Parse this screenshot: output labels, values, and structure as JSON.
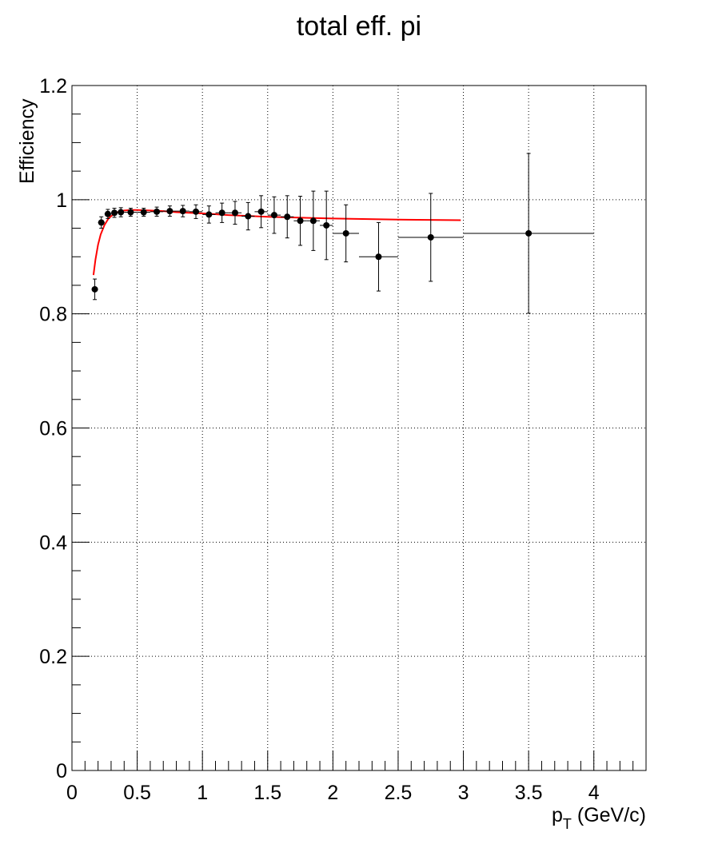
{
  "chart_data": {
    "type": "scatter",
    "title": "total eff. pi",
    "xlabel": {
      "main": "p",
      "sub": "T",
      "rest": " (GeV/c)"
    },
    "ylabel": "Efficiency",
    "xlim": [
      0,
      4.4
    ],
    "ylim": [
      0,
      1.2
    ],
    "x_ticks": [
      {
        "v": 0,
        "label": "0"
      },
      {
        "v": 0.5,
        "label": "0.5"
      },
      {
        "v": 1,
        "label": "1"
      },
      {
        "v": 1.5,
        "label": "1.5"
      },
      {
        "v": 2,
        "label": "2"
      },
      {
        "v": 2.5,
        "label": "2.5"
      },
      {
        "v": 3,
        "label": "3"
      },
      {
        "v": 3.5,
        "label": "3.5"
      },
      {
        "v": 4,
        "label": "4"
      }
    ],
    "y_ticks": [
      {
        "v": 0,
        "label": "0"
      },
      {
        "v": 0.2,
        "label": "0.2"
      },
      {
        "v": 0.4,
        "label": "0.4"
      },
      {
        "v": 0.6,
        "label": "0.6"
      },
      {
        "v": 0.8,
        "label": "0.8"
      },
      {
        "v": 1,
        "label": "1"
      },
      {
        "v": 1.2,
        "label": "1.2"
      }
    ],
    "grid": true,
    "series": [
      {
        "kind": "points-with-errors",
        "color": "#000000",
        "points": [
          {
            "x": 0.175,
            "y": 0.843,
            "xlo": 0.15,
            "xhi": 0.2,
            "eyl": 0.018,
            "eyh": 0.018
          },
          {
            "x": 0.225,
            "y": 0.96,
            "xlo": 0.2,
            "xhi": 0.25,
            "eyl": 0.01,
            "eyh": 0.01
          },
          {
            "x": 0.275,
            "y": 0.975,
            "xlo": 0.25,
            "xhi": 0.3,
            "eyl": 0.008,
            "eyh": 0.008
          },
          {
            "x": 0.325,
            "y": 0.977,
            "xlo": 0.3,
            "xhi": 0.35,
            "eyl": 0.008,
            "eyh": 0.008
          },
          {
            "x": 0.375,
            "y": 0.978,
            "xlo": 0.35,
            "xhi": 0.4,
            "eyl": 0.008,
            "eyh": 0.008
          },
          {
            "x": 0.45,
            "y": 0.978,
            "xlo": 0.4,
            "xhi": 0.5,
            "eyl": 0.007,
            "eyh": 0.007
          },
          {
            "x": 0.55,
            "y": 0.978,
            "xlo": 0.5,
            "xhi": 0.6,
            "eyl": 0.007,
            "eyh": 0.007
          },
          {
            "x": 0.65,
            "y": 0.979,
            "xlo": 0.6,
            "xhi": 0.7,
            "eyl": 0.008,
            "eyh": 0.008
          },
          {
            "x": 0.75,
            "y": 0.98,
            "xlo": 0.7,
            "xhi": 0.8,
            "eyl": 0.009,
            "eyh": 0.009
          },
          {
            "x": 0.85,
            "y": 0.98,
            "xlo": 0.8,
            "xhi": 0.9,
            "eyl": 0.01,
            "eyh": 0.01
          },
          {
            "x": 0.95,
            "y": 0.979,
            "xlo": 0.9,
            "xhi": 1.0,
            "eyl": 0.012,
            "eyh": 0.012
          },
          {
            "x": 1.05,
            "y": 0.974,
            "xlo": 1.0,
            "xhi": 1.1,
            "eyl": 0.015,
            "eyh": 0.015
          },
          {
            "x": 1.15,
            "y": 0.977,
            "xlo": 1.1,
            "xhi": 1.2,
            "eyl": 0.017,
            "eyh": 0.017
          },
          {
            "x": 1.25,
            "y": 0.977,
            "xlo": 1.2,
            "xhi": 1.3,
            "eyl": 0.02,
            "eyh": 0.02
          },
          {
            "x": 1.35,
            "y": 0.971,
            "xlo": 1.3,
            "xhi": 1.4,
            "eyl": 0.024,
            "eyh": 0.024
          },
          {
            "x": 1.45,
            "y": 0.979,
            "xlo": 1.4,
            "xhi": 1.5,
            "eyl": 0.028,
            "eyh": 0.028
          },
          {
            "x": 1.55,
            "y": 0.973,
            "xlo": 1.5,
            "xhi": 1.6,
            "eyl": 0.032,
            "eyh": 0.032
          },
          {
            "x": 1.65,
            "y": 0.97,
            "xlo": 1.6,
            "xhi": 1.7,
            "eyl": 0.037,
            "eyh": 0.037
          },
          {
            "x": 1.75,
            "y": 0.963,
            "xlo": 1.7,
            "xhi": 1.8,
            "eyl": 0.043,
            "eyh": 0.043
          },
          {
            "x": 1.85,
            "y": 0.963,
            "xlo": 1.8,
            "xhi": 1.9,
            "eyl": 0.052,
            "eyh": 0.052
          },
          {
            "x": 1.95,
            "y": 0.955,
            "xlo": 1.9,
            "xhi": 2.0,
            "eyl": 0.06,
            "eyh": 0.06
          },
          {
            "x": 2.1,
            "y": 0.941,
            "xlo": 2.0,
            "xhi": 2.2,
            "eyl": 0.05,
            "eyh": 0.05
          },
          {
            "x": 2.35,
            "y": 0.9,
            "xlo": 2.2,
            "xhi": 2.5,
            "eyl": 0.06,
            "eyh": 0.06
          },
          {
            "x": 2.75,
            "y": 0.934,
            "xlo": 2.5,
            "xhi": 3.0,
            "eyl": 0.077,
            "eyh": 0.077
          },
          {
            "x": 3.5,
            "y": 0.941,
            "xlo": 3.0,
            "xhi": 4.0,
            "eyl": 0.14,
            "eyh": 0.14
          }
        ]
      },
      {
        "kind": "fit-line",
        "color": "#ff0000",
        "x": [
          0.165,
          0.18,
          0.2,
          0.22,
          0.25,
          0.28,
          0.32,
          0.36,
          0.4,
          0.45,
          0.5,
          0.6,
          0.7,
          0.8,
          1.0,
          1.2,
          1.5,
          2.0,
          2.5,
          2.98
        ],
        "y": [
          0.868,
          0.895,
          0.921,
          0.939,
          0.956,
          0.967,
          0.975,
          0.979,
          0.981,
          0.982,
          0.982,
          0.981,
          0.98,
          0.978,
          0.976,
          0.973,
          0.97,
          0.967,
          0.965,
          0.964
        ]
      }
    ]
  }
}
